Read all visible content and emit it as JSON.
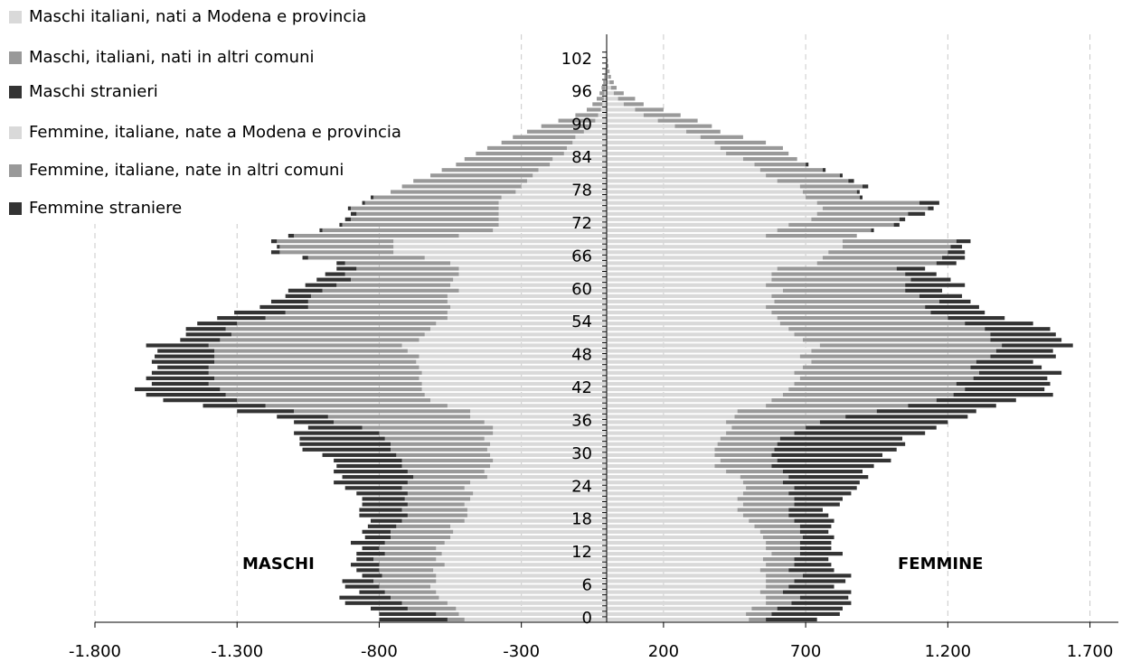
{
  "chart_data": {
    "type": "population-pyramid",
    "annotations": [
      "MASCHI",
      "FEMMINE"
    ],
    "categories": [
      "0",
      null,
      null,
      null,
      null,
      null,
      "6",
      null,
      null,
      null,
      null,
      null,
      "12",
      null,
      null,
      null,
      null,
      null,
      "18",
      null,
      null,
      null,
      null,
      null,
      "24",
      null,
      null,
      null,
      null,
      null,
      "30",
      null,
      null,
      null,
      null,
      null,
      "36",
      null,
      null,
      null,
      null,
      null,
      "42",
      null,
      null,
      null,
      null,
      null,
      "48",
      null,
      null,
      null,
      null,
      null,
      "54",
      null,
      null,
      null,
      null,
      null,
      "60",
      null,
      null,
      null,
      null,
      null,
      "66",
      null,
      null,
      null,
      null,
      null,
      "72",
      null,
      null,
      null,
      null,
      null,
      "78",
      null,
      null,
      null,
      null,
      null,
      "84",
      null,
      null,
      null,
      null,
      null,
      "90",
      null,
      null,
      null,
      null,
      null,
      "96",
      null,
      null,
      null,
      null,
      null,
      "102",
      null,
      null
    ],
    "xlim": [
      -1800,
      1800
    ],
    "xticks": [
      {
        "value": -1800,
        "label": "-1.800"
      },
      {
        "value": -1300,
        "label": "-1.300"
      },
      -800,
      -300,
      200,
      700,
      {
        "value": 1200,
        "label": "1.200"
      },
      {
        "value": 1700,
        "label": "1.700"
      }
    ],
    "grid": true,
    "legend": "top-left",
    "series": [
      {
        "name": "Maschi italiani, nati a Modena e provincia",
        "color": "#d9d9d9",
        "values": [
          -500,
          -520,
          -530,
          -560,
          -590,
          -600,
          -620,
          -600,
          -600,
          -610,
          -570,
          -600,
          -580,
          -600,
          -570,
          -550,
          -540,
          -550,
          -500,
          -490,
          -490,
          -500,
          -480,
          -470,
          -500,
          -480,
          -420,
          -430,
          -410,
          -400,
          -410,
          -420,
          -410,
          -430,
          -400,
          -400,
          -430,
          -480,
          -480,
          -560,
          -620,
          -640,
          -650,
          -650,
          -660,
          -650,
          -660,
          -670,
          -660,
          -700,
          -720,
          -660,
          -640,
          -620,
          -600,
          -560,
          -560,
          -550,
          -560,
          -560,
          -520,
          -550,
          -540,
          -520,
          -520,
          -550,
          -640,
          -750,
          -750,
          -750,
          -520,
          -400,
          -380,
          -380,
          -380,
          -380,
          -380,
          -370,
          -320,
          -300,
          -280,
          -260,
          -240,
          -200,
          -190,
          -150,
          -140,
          -120,
          -110,
          -80,
          -60,
          -40,
          -30,
          -20,
          -15,
          -10,
          -8,
          -5,
          -4,
          -3,
          -2,
          -1,
          -1,
          0,
          0
        ]
      },
      {
        "name": "Maschi, italiani, nati in altri comuni",
        "color": "#999999",
        "values": [
          -60,
          -80,
          -170,
          -160,
          -170,
          -180,
          -180,
          -220,
          -190,
          -190,
          -230,
          -220,
          -200,
          -200,
          -210,
          -210,
          -220,
          -190,
          -220,
          -210,
          -230,
          -200,
          -230,
          -230,
          -220,
          -220,
          -260,
          -270,
          -310,
          -320,
          -330,
          -340,
          -350,
          -350,
          -400,
          -460,
          -530,
          -500,
          -620,
          -640,
          -680,
          -700,
          -710,
          -750,
          -720,
          -750,
          -740,
          -710,
          -720,
          -680,
          -680,
          -700,
          -680,
          -720,
          -700,
          -640,
          -570,
          -500,
          -490,
          -480,
          -480,
          -400,
          -360,
          -400,
          -360,
          -370,
          -410,
          -400,
          -400,
          -410,
          -580,
          -600,
          -550,
          -520,
          -500,
          -520,
          -470,
          -450,
          -440,
          -420,
          -400,
          -360,
          -340,
          -330,
          -310,
          -310,
          -280,
          -250,
          -220,
          -200,
          -170,
          -130,
          -80,
          -50,
          -35,
          -25,
          -17,
          -13,
          -8,
          -5,
          -3,
          -2,
          -1,
          -1,
          -1
        ]
      },
      {
        "name": "Maschi stranieri",
        "color": "#333333",
        "values": [
          -240,
          -200,
          -130,
          -200,
          -180,
          -90,
          -120,
          -110,
          -70,
          -80,
          -100,
          -60,
          -100,
          -60,
          -120,
          -90,
          -100,
          -100,
          -110,
          -170,
          -150,
          -160,
          -150,
          -180,
          -200,
          -260,
          -250,
          -260,
          -230,
          -240,
          -260,
          -310,
          -320,
          -300,
          -300,
          -190,
          -140,
          -180,
          -200,
          -220,
          -260,
          -280,
          -300,
          -200,
          -240,
          -200,
          -180,
          -220,
          -210,
          -200,
          -220,
          -140,
          -160,
          -140,
          -140,
          -170,
          -180,
          -170,
          -130,
          -90,
          -120,
          -110,
          -120,
          -70,
          -70,
          -30,
          -20,
          -30,
          -10,
          -20,
          -20,
          -10,
          -10,
          -20,
          -20,
          -10,
          -10,
          -10,
          0,
          0,
          0,
          0,
          0,
          0,
          0,
          0,
          0,
          0,
          0,
          0,
          0,
          0,
          0,
          0,
          0,
          0,
          0,
          0,
          0,
          0,
          0,
          0,
          0,
          0,
          0
        ]
      },
      {
        "name": "Femmine, italiane, nate a Modena e provincia",
        "color": "#d9d9d9",
        "values": [
          500,
          490,
          510,
          560,
          560,
          540,
          560,
          560,
          560,
          540,
          560,
          550,
          580,
          560,
          560,
          550,
          540,
          520,
          500,
          480,
          460,
          480,
          460,
          480,
          490,
          480,
          470,
          420,
          380,
          400,
          380,
          380,
          390,
          400,
          420,
          440,
          420,
          450,
          460,
          560,
          580,
          620,
          640,
          660,
          680,
          660,
          690,
          720,
          680,
          720,
          750,
          690,
          660,
          640,
          610,
          600,
          580,
          560,
          590,
          580,
          620,
          560,
          580,
          580,
          600,
          740,
          760,
          780,
          830,
          830,
          560,
          600,
          640,
          720,
          740,
          760,
          740,
          700,
          690,
          680,
          600,
          560,
          540,
          520,
          480,
          420,
          400,
          380,
          330,
          280,
          240,
          180,
          130,
          100,
          60,
          40,
          25,
          15,
          10,
          6,
          4,
          2,
          1,
          1,
          0
        ]
      },
      {
        "name": "Femmine, italiane, nate in altri comuni",
        "color": "#999999",
        "values": [
          60,
          90,
          90,
          90,
          120,
          80,
          80,
          100,
          130,
          100,
          100,
          110,
          100,
          120,
          120,
          140,
          140,
          160,
          160,
          160,
          180,
          180,
          200,
          160,
          170,
          140,
          170,
          200,
          200,
          200,
          200,
          210,
          210,
          210,
          240,
          260,
          330,
          390,
          490,
          500,
          580,
          600,
          620,
          570,
          610,
          650,
          590,
          580,
          670,
          650,
          640,
          660,
          690,
          690,
          650,
          600,
          560,
          560,
          580,
          520,
          430,
          490,
          490,
          470,
          420,
          420,
          420,
          420,
          380,
          400,
          320,
          330,
          370,
          310,
          320,
          370,
          360,
          190,
          190,
          220,
          250,
          260,
          220,
          180,
          190,
          220,
          220,
          180,
          150,
          120,
          130,
          140,
          130,
          100,
          70,
          60,
          35,
          20,
          15,
          9,
          6,
          4,
          3,
          1,
          1
        ]
      },
      {
        "name": "Femmine straniere",
        "color": "#333333",
        "values": [
          180,
          240,
          230,
          210,
          170,
          240,
          160,
          180,
          170,
          160,
          130,
          120,
          150,
          110,
          110,
          110,
          100,
          110,
          140,
          140,
          120,
          160,
          170,
          220,
          220,
          270,
          280,
          280,
          360,
          400,
          390,
          430,
          450,
          430,
          460,
          460,
          450,
          430,
          350,
          310,
          280,
          350,
          280,
          330,
          260,
          290,
          250,
          200,
          230,
          200,
          250,
          250,
          230,
          230,
          240,
          200,
          190,
          190,
          110,
          150,
          130,
          210,
          140,
          110,
          100,
          70,
          80,
          60,
          40,
          50,
          0,
          10,
          20,
          20,
          60,
          20,
          70,
          10,
          10,
          20,
          20,
          10,
          10,
          10,
          0,
          0,
          0,
          0,
          0,
          0,
          0,
          0,
          0,
          0,
          0,
          0,
          0,
          0,
          0,
          0,
          0,
          0,
          0,
          0,
          0
        ]
      }
    ]
  }
}
